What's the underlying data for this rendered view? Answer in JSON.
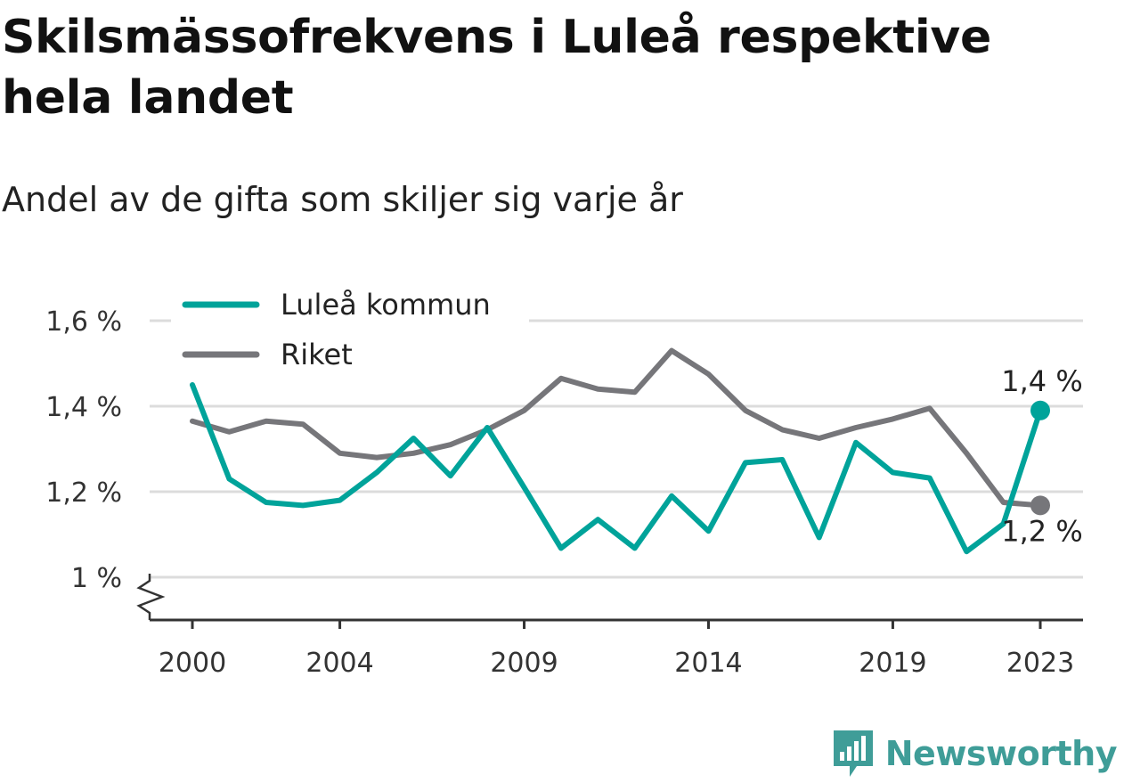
{
  "chart_data": {
    "type": "line",
    "title": "Skilsmässofrekvens i Luleå respektive hela landet",
    "subtitle": "Andel av de gifta som skiljer sig varje år",
    "x": [
      2000,
      2001,
      2002,
      2003,
      2004,
      2005,
      2006,
      2007,
      2008,
      2009,
      2010,
      2011,
      2012,
      2013,
      2014,
      2015,
      2016,
      2017,
      2018,
      2019,
      2020,
      2021,
      2022,
      2023
    ],
    "x_ticks": [
      "2000",
      "2004",
      "2009",
      "2014",
      "2019",
      "2023"
    ],
    "y_ticks": [
      {
        "value": 1.0,
        "label": "1 %"
      },
      {
        "value": 1.2,
        "label": "1,2 %"
      },
      {
        "value": 1.4,
        "label": "1,4 %"
      },
      {
        "value": 1.6,
        "label": "1,6 %"
      }
    ],
    "ylim": [
      0.9,
      1.62
    ],
    "grid": true,
    "legend_position": "top-left",
    "series": [
      {
        "name": "Luleå kommun",
        "color": "#00a39a",
        "values": [
          1.45,
          1.23,
          1.175,
          1.168,
          1.18,
          1.245,
          1.325,
          1.237,
          1.35,
          1.21,
          1.068,
          1.135,
          1.068,
          1.19,
          1.108,
          1.268,
          1.275,
          1.093,
          1.315,
          1.245,
          1.232,
          1.06,
          1.125,
          1.39
        ],
        "end_label": "1,4 %"
      },
      {
        "name": "Riket",
        "color": "#76767a",
        "values": [
          1.365,
          1.34,
          1.365,
          1.358,
          1.29,
          1.28,
          1.29,
          1.31,
          1.345,
          1.39,
          1.465,
          1.44,
          1.433,
          1.53,
          1.475,
          1.39,
          1.345,
          1.325,
          1.35,
          1.37,
          1.395,
          1.29,
          1.175,
          1.168
        ],
        "end_label": "1,2 %"
      }
    ]
  },
  "logo": {
    "icon": "newsworthy-logo-icon",
    "text": "Newsworthy",
    "color": "#3f9d98"
  }
}
